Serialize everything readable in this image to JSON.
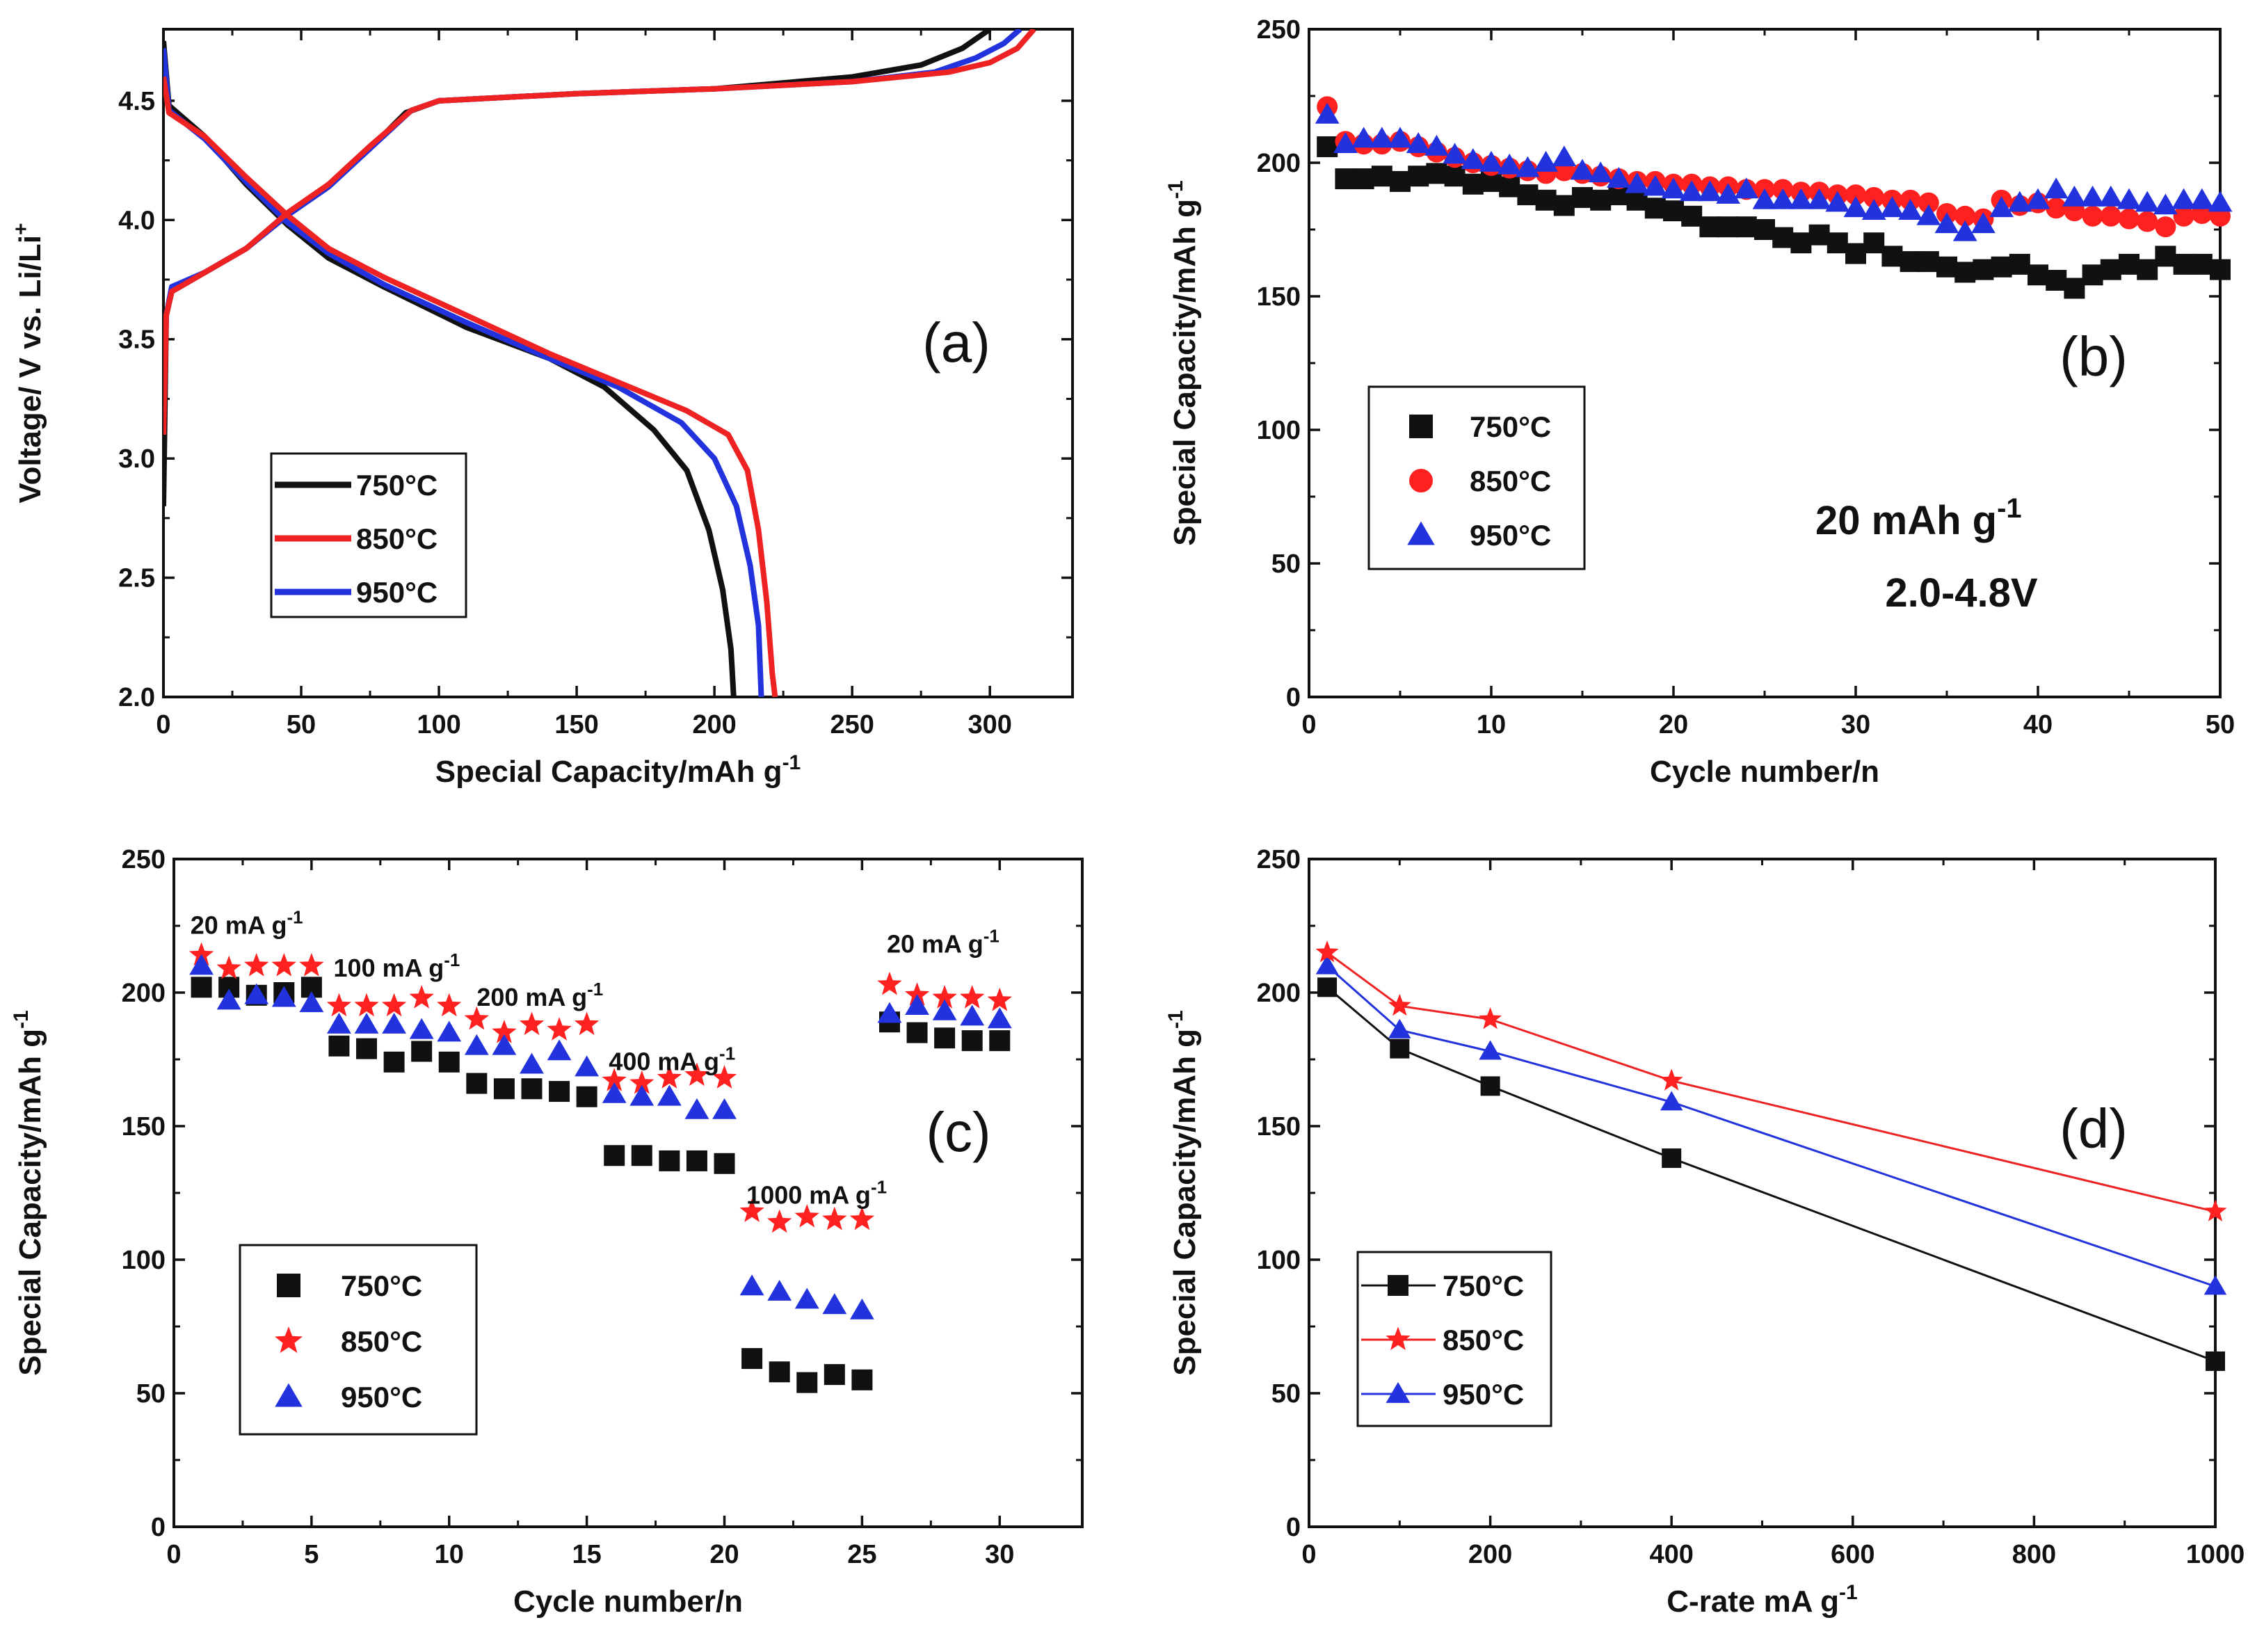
{
  "colors": {
    "black": "#111111",
    "red": "#ee2222",
    "blue": "#2233dd",
    "red_marker": "#ff2020"
  },
  "chart_data": [
    {
      "id": "a",
      "type": "line",
      "panel_label": "(a)",
      "xlabel": "Special Capacity/mAh g",
      "xlabel_sup": "-1",
      "ylabel": "Voltage/ V vs. Li/Li",
      "ylabel_sup": "+",
      "xlim": [
        0,
        330
      ],
      "ylim": [
        2.0,
        4.8
      ],
      "xticks": [
        0,
        50,
        100,
        150,
        200,
        250,
        300
      ],
      "yticks": [
        2.0,
        2.5,
        3.0,
        3.5,
        4.0,
        4.5
      ],
      "ytick_labels": [
        "2.0",
        "2.5",
        "3.0",
        "3.5",
        "4.0",
        "4.5"
      ],
      "legend": [
        "750°C",
        "850°C",
        "950°C"
      ],
      "legend_position": "lower-left",
      "series": [
        {
          "name": "750°C",
          "color": "black",
          "charge": [
            [
              0,
              2.8
            ],
            [
              1,
              3.6
            ],
            [
              3,
              3.7
            ],
            [
              15,
              3.78
            ],
            [
              30,
              3.88
            ],
            [
              45,
              4.02
            ],
            [
              60,
              4.14
            ],
            [
              75,
              4.3
            ],
            [
              88,
              4.45
            ],
            [
              100,
              4.5
            ],
            [
              150,
              4.53
            ],
            [
              200,
              4.55
            ],
            [
              250,
              4.6
            ],
            [
              275,
              4.65
            ],
            [
              290,
              4.72
            ],
            [
              300,
              4.8
            ]
          ],
          "discharge": [
            [
              0,
              4.75
            ],
            [
              2,
              4.48
            ],
            [
              15,
              4.35
            ],
            [
              30,
              4.15
            ],
            [
              45,
              3.98
            ],
            [
              60,
              3.84
            ],
            [
              80,
              3.72
            ],
            [
              110,
              3.55
            ],
            [
              140,
              3.42
            ],
            [
              160,
              3.3
            ],
            [
              178,
              3.12
            ],
            [
              190,
              2.95
            ],
            [
              198,
              2.7
            ],
            [
              203,
              2.45
            ],
            [
              206,
              2.2
            ],
            [
              207,
              2.0
            ]
          ]
        },
        {
          "name": "850°C",
          "color": "red",
          "charge": [
            [
              0,
              3.1
            ],
            [
              1,
              3.6
            ],
            [
              3,
              3.7
            ],
            [
              15,
              3.78
            ],
            [
              30,
              3.88
            ],
            [
              45,
              4.03
            ],
            [
              60,
              4.15
            ],
            [
              75,
              4.31
            ],
            [
              90,
              4.46
            ],
            [
              100,
              4.5
            ],
            [
              150,
              4.53
            ],
            [
              200,
              4.55
            ],
            [
              250,
              4.58
            ],
            [
              285,
              4.62
            ],
            [
              300,
              4.66
            ],
            [
              310,
              4.72
            ],
            [
              316,
              4.8
            ]
          ],
          "discharge": [
            [
              0,
              4.6
            ],
            [
              2,
              4.45
            ],
            [
              15,
              4.35
            ],
            [
              30,
              4.18
            ],
            [
              45,
              4.02
            ],
            [
              60,
              3.88
            ],
            [
              80,
              3.76
            ],
            [
              110,
              3.6
            ],
            [
              140,
              3.44
            ],
            [
              165,
              3.32
            ],
            [
              190,
              3.2
            ],
            [
              205,
              3.1
            ],
            [
              212,
              2.95
            ],
            [
              216,
              2.7
            ],
            [
              219,
              2.4
            ],
            [
              221,
              2.1
            ],
            [
              222,
              2.0
            ]
          ]
        },
        {
          "name": "950°C",
          "color": "blue",
          "charge": [
            [
              0,
              3.2
            ],
            [
              1,
              3.6
            ],
            [
              3,
              3.72
            ],
            [
              15,
              3.78
            ],
            [
              30,
              3.88
            ],
            [
              45,
              4.02
            ],
            [
              60,
              4.14
            ],
            [
              75,
              4.3
            ],
            [
              90,
              4.46
            ],
            [
              100,
              4.5
            ],
            [
              150,
              4.53
            ],
            [
              200,
              4.55
            ],
            [
              250,
              4.58
            ],
            [
              280,
              4.62
            ],
            [
              295,
              4.68
            ],
            [
              305,
              4.74
            ],
            [
              311,
              4.8
            ]
          ],
          "discharge": [
            [
              0,
              4.72
            ],
            [
              2,
              4.46
            ],
            [
              15,
              4.34
            ],
            [
              30,
              4.16
            ],
            [
              45,
              3.99
            ],
            [
              60,
              3.86
            ],
            [
              80,
              3.73
            ],
            [
              110,
              3.57
            ],
            [
              140,
              3.42
            ],
            [
              165,
              3.3
            ],
            [
              188,
              3.15
            ],
            [
              200,
              3.0
            ],
            [
              208,
              2.8
            ],
            [
              213,
              2.55
            ],
            [
              216,
              2.3
            ],
            [
              217,
              2.0
            ]
          ]
        }
      ]
    },
    {
      "id": "b",
      "type": "scatter",
      "panel_label": "(b)",
      "xlabel": "Cycle number/n",
      "ylabel": "Special Capacity/mAh g",
      "ylabel_sup": "-1",
      "xlim": [
        0,
        50
      ],
      "ylim": [
        0,
        250
      ],
      "xticks": [
        0,
        10,
        20,
        30,
        40,
        50
      ],
      "yticks": [
        0,
        50,
        100,
        150,
        200,
        250
      ],
      "legend": [
        "750°C",
        "850°C",
        "950°C"
      ],
      "legend_position": "lower-left",
      "annotations": [
        {
          "text": "20 mAh g",
          "sup": "-1"
        },
        {
          "text": "2.0-4.8V"
        }
      ],
      "x": [
        1,
        2,
        3,
        4,
        5,
        6,
        7,
        8,
        9,
        10,
        11,
        12,
        13,
        14,
        15,
        16,
        17,
        18,
        19,
        20,
        21,
        22,
        23,
        24,
        25,
        26,
        27,
        28,
        29,
        30,
        31,
        32,
        33,
        34,
        35,
        36,
        37,
        38,
        39,
        40,
        41,
        42,
        43,
        44,
        45,
        46,
        47,
        48,
        49,
        50
      ],
      "series": [
        {
          "name": "750°C",
          "marker": "square",
          "color": "black",
          "values": [
            206,
            194,
            194,
            195,
            193,
            195,
            196,
            195,
            192,
            193,
            191,
            188,
            186,
            184,
            187,
            186,
            188,
            186,
            183,
            182,
            180,
            176,
            176,
            176,
            175,
            172,
            170,
            173,
            170,
            166,
            170,
            165,
            163,
            163,
            161,
            159,
            160,
            161,
            162,
            158,
            156,
            153,
            158,
            160,
            162,
            160,
            165,
            162,
            162,
            160
          ]
        },
        {
          "name": "850°C",
          "marker": "circle",
          "color": "red",
          "values": [
            221,
            208,
            207,
            207,
            208,
            206,
            204,
            202,
            200,
            199,
            198,
            197,
            196,
            197,
            196,
            195,
            194,
            193,
            193,
            192,
            192,
            191,
            191,
            190,
            190,
            190,
            189,
            189,
            188,
            188,
            187,
            186,
            186,
            185,
            181,
            180,
            179,
            186,
            184,
            185,
            183,
            182,
            180,
            180,
            179,
            178,
            176,
            180,
            181,
            180
          ]
        },
        {
          "name": "950°C",
          "marker": "triangle",
          "color": "blue",
          "values": [
            218,
            207,
            209,
            209,
            209,
            207,
            206,
            203,
            201,
            200,
            199,
            198,
            200,
            202,
            197,
            196,
            194,
            192,
            191,
            190,
            189,
            189,
            188,
            190,
            186,
            186,
            186,
            186,
            185,
            183,
            182,
            183,
            182,
            180,
            177,
            174,
            177,
            183,
            185,
            186,
            190,
            187,
            187,
            187,
            186,
            185,
            184,
            186,
            186,
            185
          ]
        }
      ]
    },
    {
      "id": "c",
      "type": "scatter",
      "panel_label": "(c)",
      "xlabel": "Cycle number/n",
      "ylabel": "Special Capacity/mAh g",
      "ylabel_sup": "-1",
      "xlim": [
        0,
        33
      ],
      "ylim": [
        0,
        250
      ],
      "xticks": [
        0,
        5,
        10,
        15,
        20,
        25,
        30
      ],
      "yticks": [
        0,
        50,
        100,
        150,
        200,
        250
      ],
      "legend": [
        "750°C",
        "850°C",
        "950°C"
      ],
      "legend_position": "lower-left",
      "annotations": [
        {
          "text": "20 mA g",
          "sup": "-1",
          "x": 0.6,
          "y": 222
        },
        {
          "text": "100 mA g",
          "sup": "-1",
          "x": 5.8,
          "y": 206
        },
        {
          "text": "200 mA g",
          "sup": "-1",
          "x": 11.0,
          "y": 195
        },
        {
          "text": "400 mA g",
          "sup": "-1",
          "x": 15.8,
          "y": 171
        },
        {
          "text": "1000 mA g",
          "sup": "-1",
          "x": 20.8,
          "y": 121
        },
        {
          "text": "20 mA g",
          "sup": "-1",
          "x": 25.9,
          "y": 215
        }
      ],
      "x": [
        1,
        2,
        3,
        4,
        5,
        6,
        7,
        8,
        9,
        10,
        11,
        12,
        13,
        14,
        15,
        16,
        17,
        18,
        19,
        20,
        21,
        22,
        23,
        24,
        25,
        26,
        27,
        28,
        29,
        30
      ],
      "series": [
        {
          "name": "750°C",
          "marker": "square",
          "color": "black",
          "values": [
            202,
            202,
            199,
            200,
            202,
            180,
            179,
            174,
            178,
            174,
            166,
            164,
            164,
            163,
            161,
            139,
            139,
            137,
            137,
            136,
            63,
            58,
            54,
            57,
            55,
            189,
            185,
            183,
            182,
            182
          ]
        },
        {
          "name": "850°C",
          "marker": "star",
          "color": "red",
          "values": [
            214,
            209,
            210,
            210,
            210,
            195,
            195,
            195,
            198,
            195,
            190,
            185,
            188,
            186,
            188,
            167,
            166,
            168,
            169,
            168,
            118,
            114,
            116,
            115,
            115,
            203,
            199,
            198,
            198,
            197
          ]
        },
        {
          "name": "950°C",
          "marker": "triangle",
          "color": "blue",
          "values": [
            210,
            197,
            199,
            198,
            196,
            188,
            188,
            188,
            186,
            185,
            180,
            180,
            173,
            178,
            172,
            162,
            161,
            161,
            156,
            156,
            90,
            88,
            85,
            83,
            81,
            192,
            195,
            193,
            191,
            190
          ]
        }
      ]
    },
    {
      "id": "d",
      "type": "line",
      "panel_label": "(d)",
      "xlabel": "C-rate mA g",
      "xlabel_sup": "-1",
      "ylabel": "Special Capacity/mAh g",
      "ylabel_sup": "-1",
      "xlim": [
        0,
        1000
      ],
      "ylim": [
        0,
        250
      ],
      "xticks": [
        0,
        200,
        400,
        600,
        800,
        1000
      ],
      "yticks": [
        0,
        50,
        100,
        150,
        200,
        250
      ],
      "legend": [
        "750°C",
        "850°C",
        "950°C"
      ],
      "legend_position": "lower-left",
      "x": [
        20,
        100,
        200,
        400,
        1000
      ],
      "series": [
        {
          "name": "750°C",
          "marker": "square",
          "color": "black",
          "values": [
            202,
            179,
            165,
            138,
            62
          ]
        },
        {
          "name": "850°C",
          "marker": "star",
          "color": "red",
          "values": [
            215,
            195,
            190,
            167,
            118
          ]
        },
        {
          "name": "950°C",
          "marker": "triangle",
          "color": "blue",
          "values": [
            210,
            186,
            178,
            159,
            90
          ]
        }
      ]
    }
  ]
}
